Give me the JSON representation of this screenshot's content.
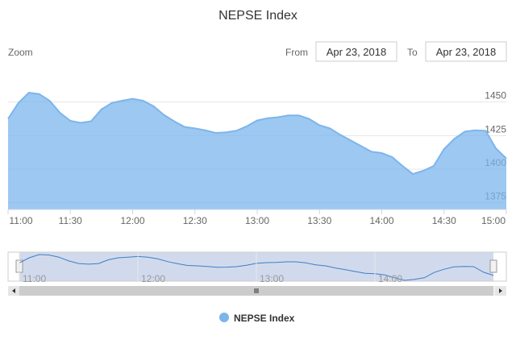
{
  "chart_data": {
    "type": "area",
    "title": "NEPSE Index",
    "zoom_label": "Zoom",
    "from_label": "From",
    "from_date": "Apr 23, 2018",
    "to_label": "To",
    "to_date": "Apr 23, 2018",
    "x": [
      "11:00",
      "11:05",
      "11:10",
      "11:15",
      "11:20",
      "11:25",
      "11:30",
      "11:35",
      "11:40",
      "11:45",
      "11:50",
      "11:55",
      "12:00",
      "12:05",
      "12:10",
      "12:15",
      "12:20",
      "12:25",
      "12:30",
      "12:35",
      "12:40",
      "12:45",
      "12:50",
      "12:55",
      "13:00",
      "13:05",
      "13:10",
      "13:15",
      "13:20",
      "13:25",
      "13:30",
      "13:35",
      "13:40",
      "13:45",
      "13:50",
      "13:55",
      "14:00",
      "14:05",
      "14:10",
      "14:15",
      "14:20",
      "14:25",
      "14:30",
      "14:35",
      "14:40",
      "14:45",
      "14:50",
      "14:55",
      "15:00"
    ],
    "series": [
      {
        "name": "NEPSE Index",
        "color": "#7cb5ec",
        "values": [
          1437.5,
          1449.4,
          1457,
          1456,
          1451,
          1442,
          1436,
          1434.5,
          1435.7,
          1444.6,
          1449.4,
          1451,
          1452.4,
          1451,
          1447,
          1440.5,
          1435.7,
          1431.5,
          1430.4,
          1429,
          1427,
          1427.4,
          1428.6,
          1432,
          1436.3,
          1438,
          1438.7,
          1440,
          1440,
          1437.5,
          1432.7,
          1430.4,
          1425.6,
          1421.4,
          1417.3,
          1413,
          1412,
          1409,
          1402.4,
          1396.4,
          1398.8,
          1402.4,
          1415,
          1422.6,
          1428,
          1429,
          1428.6,
          1415.5,
          1408
        ]
      }
    ],
    "xlim": [
      "11:00",
      "15:00"
    ],
    "xticks": [
      "11:00",
      "11:30",
      "12:00",
      "12:30",
      "13:00",
      "13:30",
      "14:00",
      "14:30",
      "15:00"
    ],
    "navigator_xticks": [
      "11:00",
      "12:00",
      "13:00",
      "14:00"
    ],
    "ylim": [
      1370,
      1469
    ],
    "yticks": [
      1375,
      1400,
      1425,
      1450
    ],
    "grid": true
  }
}
